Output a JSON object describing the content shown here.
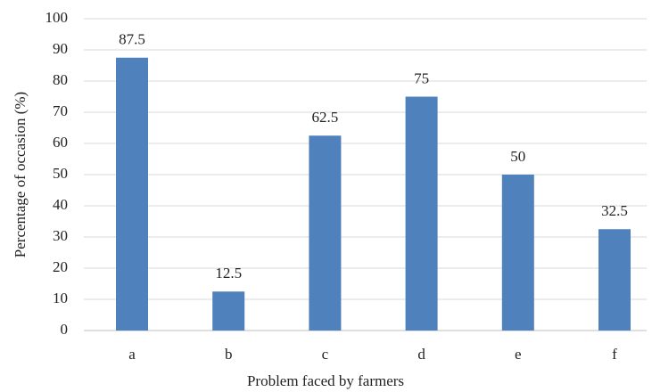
{
  "chart_data": {
    "type": "bar",
    "x_label": "Problem faced by farmers",
    "y_label": "Percentage of occasion (%)",
    "categories": [
      "a",
      "b",
      "c",
      "d",
      "e",
      "f"
    ],
    "values": [
      87.5,
      12.5,
      62.5,
      75,
      50,
      32.5
    ],
    "color": "#4f81bd",
    "ylim": [
      0,
      100
    ],
    "yticks": [
      0,
      10,
      20,
      30,
      40,
      50,
      60,
      70,
      80,
      90,
      100
    ],
    "grid": true
  }
}
